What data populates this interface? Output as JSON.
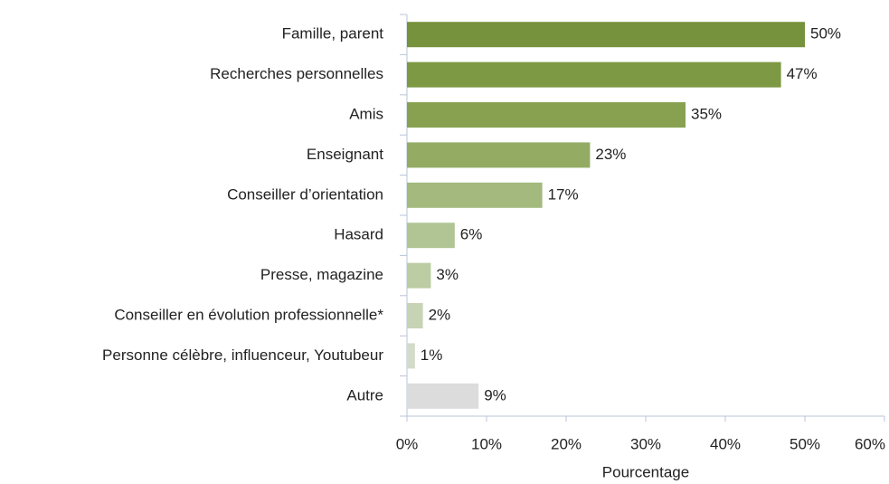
{
  "chart_data": {
    "type": "barh",
    "categories": [
      "Famille, parent",
      "Recherches personnelles",
      "Amis",
      "Enseignant",
      "Conseiller d’orientation",
      "Hasard",
      "Presse, magazine",
      "Conseiller en évolution professionnelle*",
      "Personne célèbre, influenceur, Youtubeur",
      "Autre"
    ],
    "values": [
      50,
      47,
      35,
      23,
      17,
      6,
      3,
      2,
      1,
      9
    ],
    "value_labels": [
      "50%",
      "47%",
      "35%",
      "23%",
      "17%",
      "6%",
      "3%",
      "2%",
      "1%",
      "9%"
    ],
    "colors": [
      "#76923c",
      "#7d9943",
      "#87a150",
      "#93ab63",
      "#a3b97e",
      "#b1c494",
      "#bccca3",
      "#c7d3b5",
      "#d3dbc9",
      "#dcdcdc"
    ],
    "xlabel": "Pourcentage",
    "xlim": [
      0,
      60
    ],
    "xticks": [
      {
        "value": 0,
        "label": "0%"
      },
      {
        "value": 10,
        "label": "10%"
      },
      {
        "value": 20,
        "label": "20%"
      },
      {
        "value": 30,
        "label": "30%"
      },
      {
        "value": 40,
        "label": "40%"
      },
      {
        "value": 50,
        "label": "50%"
      },
      {
        "value": 60,
        "label": "60%"
      }
    ]
  }
}
